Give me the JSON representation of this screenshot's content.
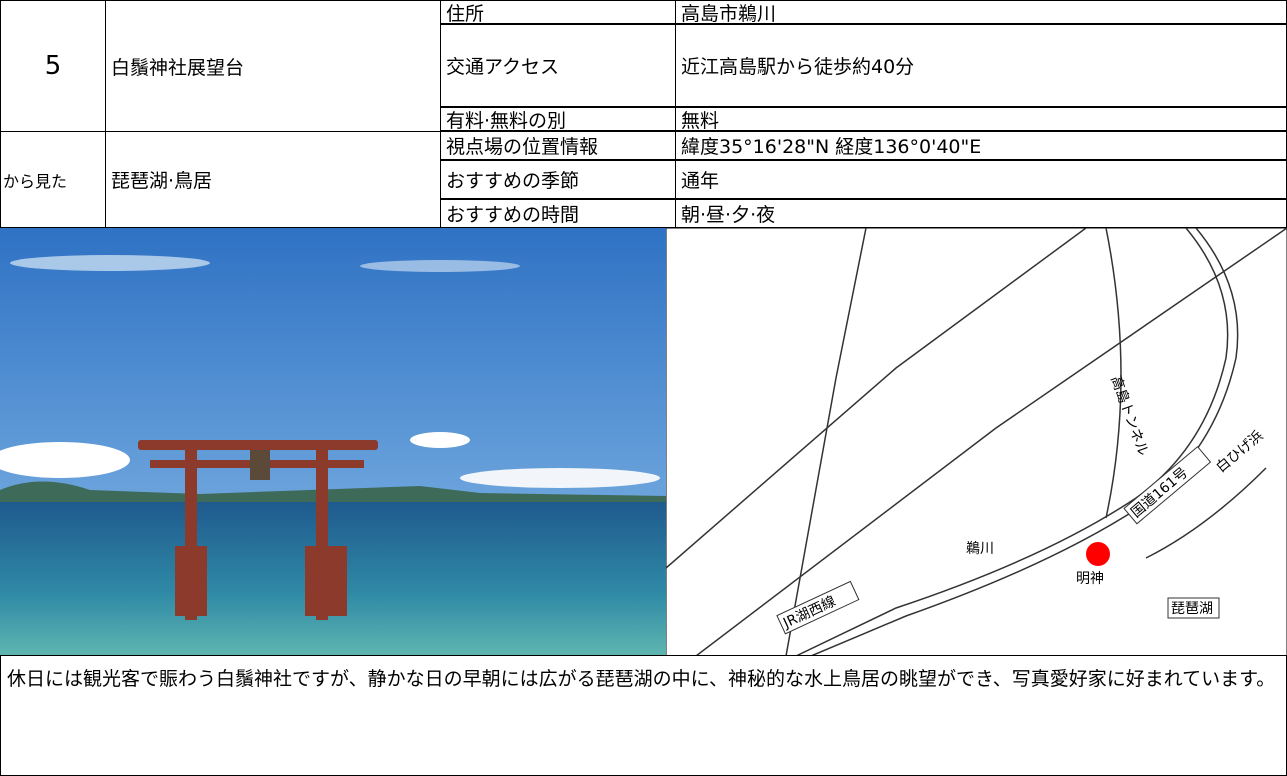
{
  "spot": {
    "number": "5",
    "name": "白鬚神社展望台",
    "view_label": "から見た",
    "view_target": "琵琶湖·鳥居"
  },
  "info": [
    {
      "label": "住所",
      "value": "高島市鵜川"
    },
    {
      "label": "交通アクセス",
      "value": "近江高島駅から徒歩約40分"
    },
    {
      "label": "有料·無料の別",
      "value": "無料"
    },
    {
      "label": "視点場の位置情報",
      "value": "緯度35°16'28\"N 経度136°0'40\"E"
    },
    {
      "label": "おすすめの季節",
      "value": "通年"
    },
    {
      "label": "おすすめの時間",
      "value": "朝·昼·夕·夜"
    }
  ],
  "map": {
    "labels": [
      "国道161号",
      "JR湖西線",
      "琵琶湖",
      "鵜川",
      "明神",
      "白ひげ浜",
      "高島トンネル"
    ]
  },
  "description": "休日には観光客で賑わう白鬚神社ですが、静かな日の早朝には広がる琵琶湖の中に、神秘的な水上鳥居の眺望ができ、写真愛好家に好まれています。"
}
